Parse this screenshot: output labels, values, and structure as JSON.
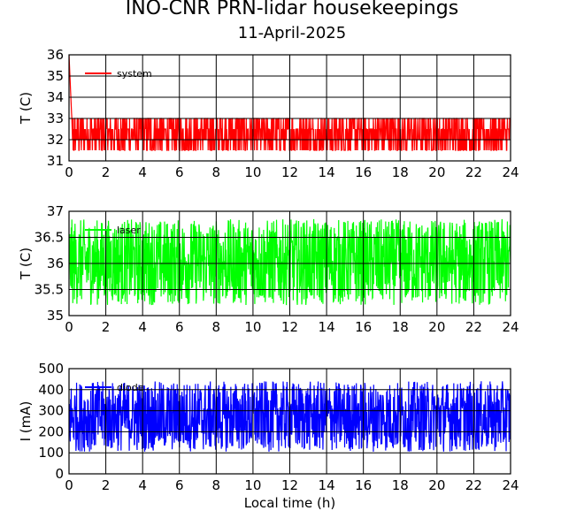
{
  "title": "INO-CNR PRN-lidar housekeepings",
  "subtitle": "11-April-2025",
  "chart_data": [
    {
      "type": "line",
      "ylabel": "T (C)",
      "xlabel": "",
      "xlim": [
        0,
        24
      ],
      "ylim": [
        31,
        36
      ],
      "xticks": [
        "0",
        "2",
        "4",
        "6",
        "8",
        "10",
        "12",
        "14",
        "16",
        "18",
        "20",
        "22",
        "24"
      ],
      "yticks": [
        "31",
        "32",
        "33",
        "34",
        "35",
        "36"
      ],
      "grid": true,
      "legend_position": "top-left",
      "series": [
        {
          "name": "system",
          "color": "#ff0000",
          "min": 31.5,
          "max": 33.0,
          "start_peak": 36.0
        }
      ]
    },
    {
      "type": "line",
      "ylabel": "T (C)",
      "xlabel": "",
      "xlim": [
        0,
        24
      ],
      "ylim": [
        35,
        37
      ],
      "xticks": [
        "0",
        "2",
        "4",
        "6",
        "8",
        "10",
        "12",
        "14",
        "16",
        "18",
        "20",
        "22",
        "24"
      ],
      "yticks": [
        "35",
        "35.5",
        "36",
        "36.5",
        "37"
      ],
      "grid": true,
      "legend_position": "top-left",
      "series": [
        {
          "name": "laser",
          "color": "#00ff00",
          "min": 35.2,
          "max": 36.85
        }
      ]
    },
    {
      "type": "line",
      "ylabel": "I (mA)",
      "xlabel": "Local time (h)",
      "xlim": [
        0,
        24
      ],
      "ylim": [
        0,
        500
      ],
      "xticks": [
        "0",
        "2",
        "4",
        "6",
        "8",
        "10",
        "12",
        "14",
        "16",
        "18",
        "20",
        "22",
        "24"
      ],
      "yticks": [
        "0",
        "100",
        "200",
        "300",
        "400",
        "500"
      ],
      "grid": true,
      "legend_position": "top-left",
      "series": [
        {
          "name": "diode",
          "color": "#0000ff",
          "min": 105,
          "max": 440
        }
      ]
    }
  ]
}
